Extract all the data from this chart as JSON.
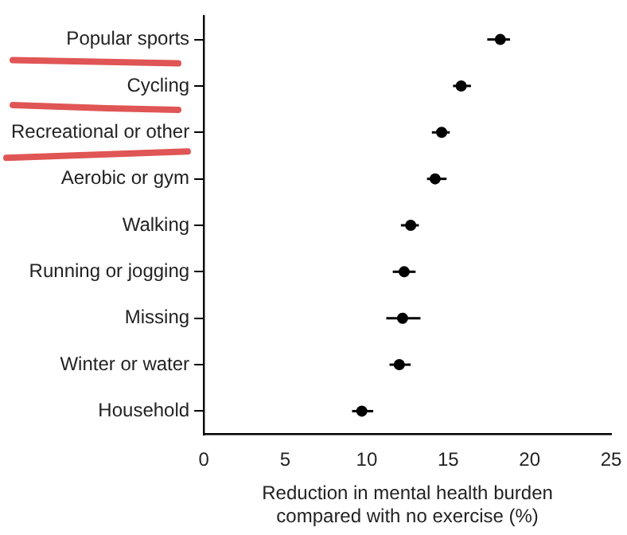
{
  "chart_data": {
    "type": "scatter",
    "orientation": "horizontal",
    "categories": [
      "Popular sports",
      "Cycling",
      "Recreational or other",
      "Aerobic or gym",
      "Walking",
      "Running or jogging",
      "Missing",
      "Winter or water",
      "Household"
    ],
    "values": [
      18.2,
      15.8,
      14.6,
      14.2,
      12.7,
      12.3,
      12.2,
      12.0,
      9.7
    ],
    "errors": [
      [
        17.4,
        18.8
      ],
      [
        15.3,
        16.4
      ],
      [
        14.0,
        15.1
      ],
      [
        13.7,
        14.9
      ],
      [
        12.1,
        13.2
      ],
      [
        11.6,
        13.0
      ],
      [
        11.2,
        13.3
      ],
      [
        11.4,
        12.7
      ],
      [
        9.1,
        10.4
      ]
    ],
    "color": "#000000",
    "marker": "circle",
    "grid": false,
    "legend": false,
    "xlabel": "Reduction in mental health burden\ncompared with no exercise (%)",
    "xlim": [
      0,
      25
    ],
    "xticks": [
      0,
      5,
      10,
      15,
      20,
      25
    ]
  }
}
